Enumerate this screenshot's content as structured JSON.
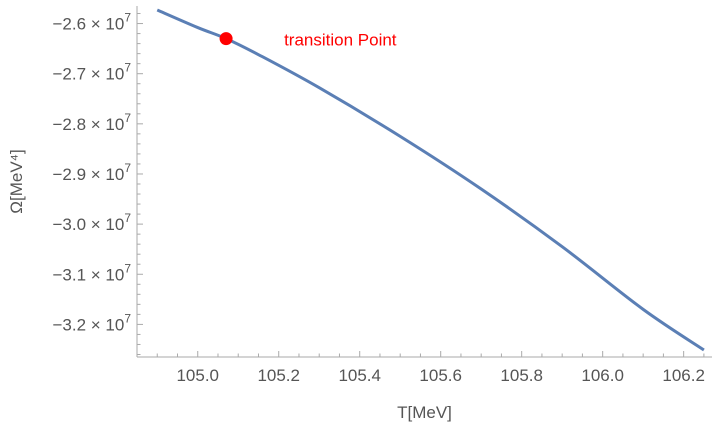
{
  "chart_data": {
    "type": "line",
    "title": "",
    "xlabel": "T[MeV]",
    "ylabel": "Ω[MeV⁴]",
    "xlim": [
      104.85,
      106.27
    ],
    "ylim": [
      -32650000,
      -25650000
    ],
    "grid": false,
    "colors": {
      "line": "#5b7fb5",
      "marker": "#ff0000",
      "axis": "#aaaaaa",
      "text": "#555555"
    },
    "x_major_ticks": [
      105.0,
      105.2,
      105.4,
      105.6,
      105.8,
      106.0,
      106.2
    ],
    "x_tick_labels": [
      "105.0",
      "105.2",
      "105.4",
      "105.6",
      "105.8",
      "106.0",
      "106.2"
    ],
    "y_major_ticks": [
      {
        "value": -26000000,
        "mantissa": "−2.6",
        "times": "×",
        "base": "10",
        "exponent": "7"
      },
      {
        "value": -27000000,
        "mantissa": "−2.7",
        "times": "×",
        "base": "10",
        "exponent": "7"
      },
      {
        "value": -28000000,
        "mantissa": "−2.8",
        "times": "×",
        "base": "10",
        "exponent": "7"
      },
      {
        "value": -29000000,
        "mantissa": "−2.9",
        "times": "×",
        "base": "10",
        "exponent": "7"
      },
      {
        "value": -30000000,
        "mantissa": "−3.0",
        "times": "×",
        "base": "10",
        "exponent": "7"
      },
      {
        "value": -31000000,
        "mantissa": "−3.1",
        "times": "×",
        "base": "10",
        "exponent": "7"
      },
      {
        "value": -32000000,
        "mantissa": "−3.2",
        "times": "×",
        "base": "10",
        "exponent": "7"
      }
    ],
    "series": [
      {
        "x": [
          104.9,
          105.0,
          105.07,
          105.15,
          105.3,
          105.5,
          105.7,
          105.9,
          106.1,
          106.25
        ],
        "y": [
          -25730000,
          -26080000,
          -26300000,
          -26620000,
          -27280000,
          -28250000,
          -29300000,
          -30450000,
          -31700000,
          -32510000
        ]
      }
    ],
    "annotations": [
      {
        "x": 105.07,
        "y": -26300000,
        "text": "transition Point"
      }
    ]
  }
}
